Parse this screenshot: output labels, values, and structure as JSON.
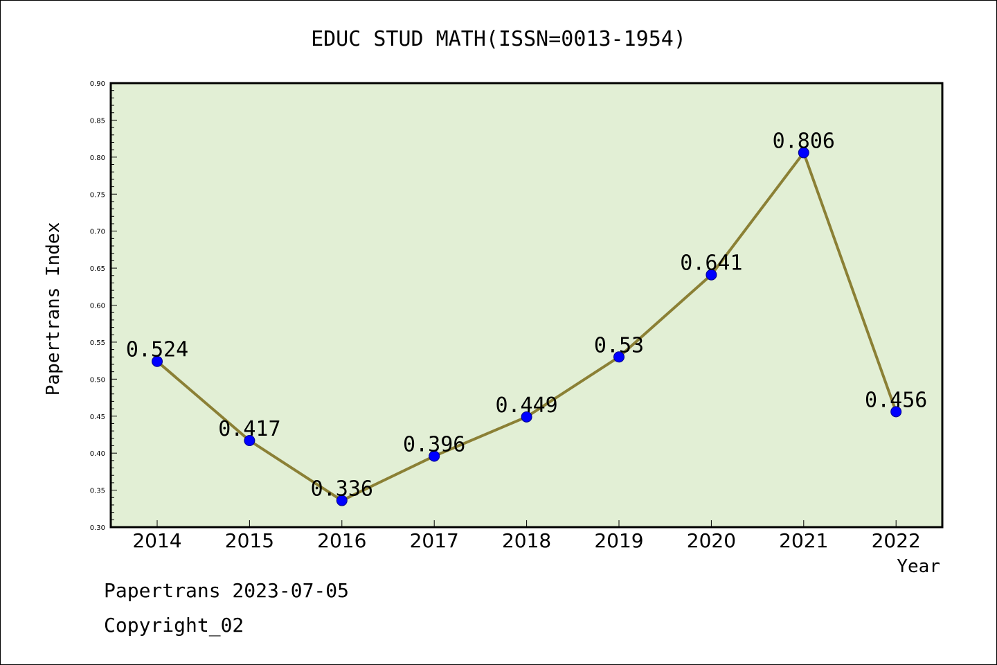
{
  "chart_data": {
    "type": "line",
    "title": "EDUC STUD MATH(ISSN=0013-1954)",
    "xlabel": "Year",
    "ylabel": "Papertrans Index",
    "categories": [
      "2014",
      "2015",
      "2016",
      "2017",
      "2018",
      "2019",
      "2020",
      "2021",
      "2022"
    ],
    "series": [
      {
        "values": [
          0.524,
          0.417,
          0.336,
          0.396,
          0.449,
          0.53,
          0.641,
          0.806,
          0.456
        ],
        "labels": [
          "0.524",
          "0.417",
          "0.336",
          "0.396",
          "0.449",
          "0.53",
          "0.641",
          "0.806",
          "0.456"
        ]
      }
    ],
    "ylim": [
      0.3,
      0.9
    ],
    "yticks": [
      "0.30",
      "0.35",
      "0.40",
      "0.45",
      "0.50",
      "0.55",
      "0.60",
      "0.65",
      "0.70",
      "0.75",
      "0.80",
      "0.85",
      "0.90"
    ],
    "grid": false,
    "colors": {
      "plot_background": "#e2efd5",
      "line": "#8b8035",
      "marker": "#0000ff",
      "marker_edge": "#00008b"
    }
  },
  "footer": {
    "line1": "Papertrans 2023-07-05",
    "line2": "Copyright_02"
  }
}
